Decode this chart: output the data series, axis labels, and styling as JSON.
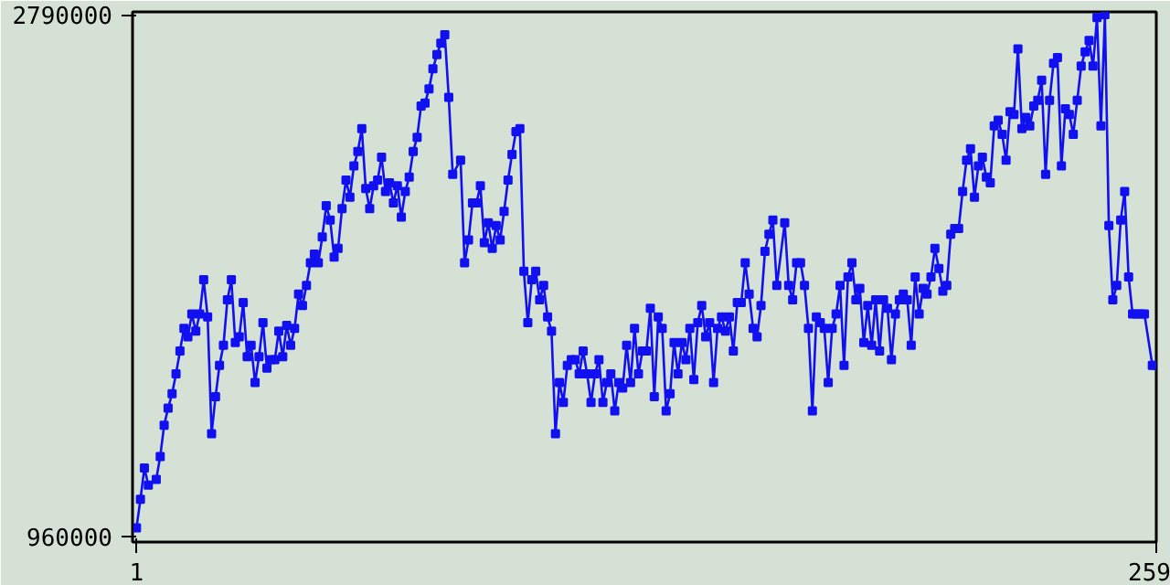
{
  "chart_data": {
    "type": "line",
    "marker": "square",
    "grid": false,
    "xlim": [
      0,
      259
    ],
    "xticks": [
      1,
      259
    ],
    "ylim": [
      940000,
      2800000
    ],
    "yticks": [
      960000,
      2790000
    ],
    "series": [
      {
        "color": "#1010f0",
        "x": [
          1,
          2,
          3,
          4,
          6,
          7,
          8,
          9,
          10,
          11,
          12,
          13,
          14,
          15,
          16,
          17,
          18,
          19,
          20,
          21,
          22,
          23,
          24,
          25,
          26,
          27,
          28,
          29,
          30,
          31,
          32,
          33,
          34,
          35,
          36,
          37,
          38,
          39,
          40,
          41,
          42,
          43,
          44,
          45,
          46,
          47,
          48,
          49,
          50,
          51,
          52,
          53,
          54,
          55,
          56,
          57,
          58,
          59,
          60,
          61,
          62,
          63,
          64,
          65,
          66,
          67,
          68,
          69,
          70,
          71,
          72,
          73,
          74,
          75,
          76,
          77,
          78,
          79,
          80,
          81,
          83,
          84,
          85,
          86,
          87,
          88,
          89,
          90,
          91,
          92,
          93,
          94,
          95,
          96,
          97,
          98,
          99,
          100,
          101,
          102,
          103,
          104,
          105,
          106,
          107,
          108,
          109,
          110,
          111,
          112,
          113,
          114,
          115,
          116,
          117,
          118,
          119,
          120,
          121,
          122,
          123,
          124,
          125,
          126,
          127,
          128,
          129,
          130,
          131,
          132,
          133,
          134,
          135,
          136,
          137,
          138,
          139,
          140,
          141,
          142,
          143,
          144,
          145,
          146,
          147,
          148,
          149,
          150,
          151,
          152,
          153,
          154,
          155,
          156,
          157,
          158,
          159,
          160,
          161,
          162,
          163,
          165,
          166,
          167,
          168,
          169,
          170,
          171,
          172,
          173,
          174,
          175,
          176,
          177,
          178,
          179,
          180,
          181,
          182,
          183,
          184,
          185,
          186,
          187,
          188,
          189,
          190,
          191,
          192,
          193,
          194,
          195,
          196,
          197,
          198,
          199,
          200,
          201,
          202,
          203,
          204,
          205,
          206,
          207,
          208,
          209,
          210,
          211,
          212,
          213,
          214,
          215,
          216,
          217,
          218,
          219,
          220,
          221,
          222,
          223,
          224,
          225,
          226,
          227,
          228,
          229,
          230,
          231,
          232,
          233,
          234,
          235,
          236,
          237,
          238,
          239,
          240,
          241,
          242,
          243,
          244,
          245,
          246,
          247,
          248,
          249,
          250,
          251,
          252,
          253,
          254,
          255,
          256,
          258,
          259
        ],
        "values": [
          990000,
          1090000,
          1200000,
          1140000,
          1160000,
          1240000,
          1350000,
          1410000,
          1460000,
          1530000,
          1610000,
          1690000,
          1660000,
          1740000,
          1680000,
          1740000,
          1860000,
          1730000,
          1320000,
          1450000,
          1560000,
          1630000,
          1790000,
          1860000,
          1640000,
          1660000,
          1780000,
          1590000,
          1630000,
          1500000,
          1590000,
          1710000,
          1550000,
          1580000,
          1580000,
          1680000,
          1590000,
          1700000,
          1630000,
          1690000,
          1810000,
          1770000,
          1840000,
          1920000,
          1950000,
          1920000,
          2010000,
          2120000,
          2070000,
          1940000,
          1970000,
          2110000,
          2210000,
          2150000,
          2260000,
          2310000,
          2390000,
          2180000,
          2110000,
          2190000,
          2210000,
          2290000,
          2170000,
          2200000,
          2130000,
          2190000,
          2080000,
          2170000,
          2220000,
          2310000,
          2360000,
          2470000,
          2480000,
          2530000,
          2600000,
          2650000,
          2690000,
          2720000,
          2500000,
          2230000,
          2280000,
          1920000,
          2000000,
          2130000,
          2130000,
          2190000,
          1990000,
          2060000,
          1970000,
          2050000,
          2000000,
          2100000,
          2210000,
          2300000,
          2380000,
          2390000,
          1890000,
          1710000,
          1860000,
          1890000,
          1790000,
          1840000,
          1730000,
          1680000,
          1320000,
          1500000,
          1430000,
          1560000,
          1580000,
          1580000,
          1530000,
          1610000,
          1530000,
          1430000,
          1530000,
          1580000,
          1430000,
          1500000,
          1530000,
          1400000,
          1500000,
          1480000,
          1630000,
          1500000,
          1690000,
          1530000,
          1610000,
          1610000,
          1760000,
          1450000,
          1730000,
          1690000,
          1400000,
          1460000,
          1640000,
          1530000,
          1640000,
          1580000,
          1690000,
          1510000,
          1710000,
          1770000,
          1660000,
          1710000,
          1500000,
          1690000,
          1730000,
          1680000,
          1730000,
          1610000,
          1780000,
          1780000,
          1920000,
          1810000,
          1690000,
          1660000,
          1770000,
          1960000,
          2020000,
          2070000,
          1840000,
          2060000,
          1840000,
          1790000,
          1920000,
          1920000,
          1840000,
          1690000,
          1400000,
          1730000,
          1710000,
          1690000,
          1500000,
          1690000,
          1740000,
          1840000,
          1560000,
          1870000,
          1920000,
          1790000,
          1830000,
          1640000,
          1770000,
          1630000,
          1790000,
          1610000,
          1790000,
          1760000,
          1580000,
          1740000,
          1790000,
          1810000,
          1790000,
          1630000,
          1870000,
          1740000,
          1830000,
          1810000,
          1870000,
          1970000,
          1900000,
          1820000,
          1840000,
          2020000,
          2040000,
          2040000,
          2170000,
          2280000,
          2320000,
          2150000,
          2260000,
          2290000,
          2220000,
          2200000,
          2400000,
          2420000,
          2370000,
          2280000,
          2450000,
          2440000,
          2670000,
          2390000,
          2430000,
          2400000,
          2470000,
          2490000,
          2560000,
          2230000,
          2490000,
          2620000,
          2640000,
          2260000,
          2460000,
          2440000,
          2370000,
          2490000,
          2610000,
          2660000,
          2700000,
          2610000,
          2780000,
          2400000,
          2790000,
          2050000,
          1790000,
          1840000,
          2070000,
          2170000,
          1870000,
          1740000,
          1740000,
          1740000,
          1740000,
          1560000,
          1560000
        ]
      }
    ]
  }
}
